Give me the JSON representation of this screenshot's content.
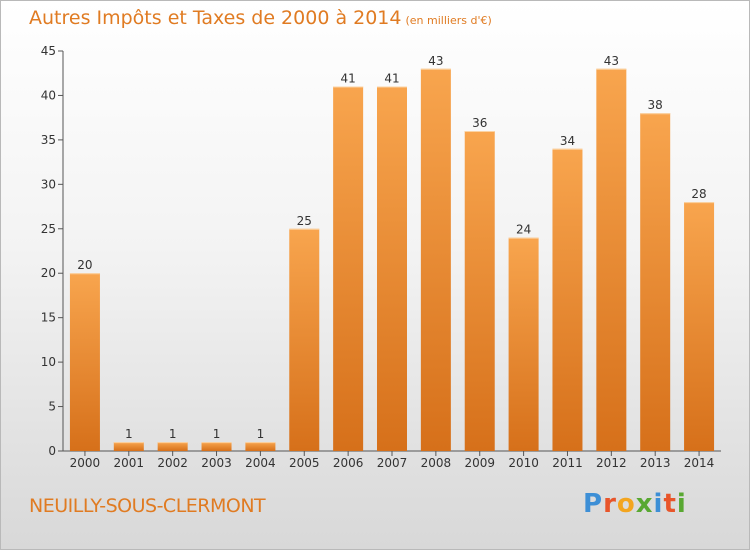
{
  "header": {
    "title": "Autres Impôts et Taxes de 2000 à 2014",
    "unit": "(en milliers d'€)"
  },
  "footer": {
    "place": "NEUILLY-SOUS-CLERMONT",
    "logo_letters": [
      "P",
      "r",
      "o",
      "x",
      "i",
      "t",
      "i"
    ],
    "logo_colors": [
      "#3d8fd6",
      "#e8552a",
      "#f3a51f",
      "#59a832",
      "#3d8fd6",
      "#e8552a",
      "#59a832"
    ]
  },
  "chart_data": {
    "type": "bar",
    "title": "Autres Impôts et Taxes de 2000 à 2014",
    "categories": [
      "2000",
      "2001",
      "2002",
      "2003",
      "2004",
      "2005",
      "2006",
      "2007",
      "2008",
      "2009",
      "2010",
      "2011",
      "2012",
      "2013",
      "2014"
    ],
    "values": [
      20,
      1,
      1,
      1,
      1,
      25,
      41,
      41,
      43,
      36,
      24,
      34,
      43,
      38,
      28
    ],
    "ylim": [
      0,
      45
    ],
    "yticks": [
      0,
      5,
      10,
      15,
      20,
      25,
      30,
      35,
      40,
      45
    ],
    "grid": false,
    "bar_color_top": "#f8a54e",
    "bar_color_bottom": "#d6701a"
  }
}
